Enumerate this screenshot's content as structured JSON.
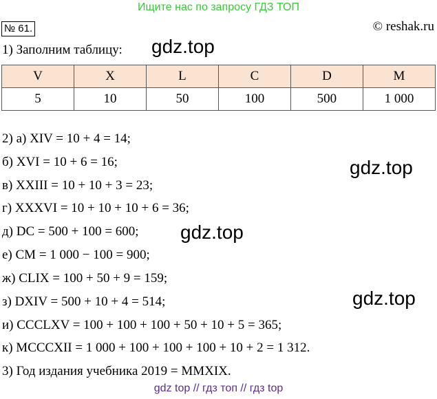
{
  "banner": "Ищите нас по запросу ГДЗ ТОП",
  "task_number": "№ 61.",
  "copyright": "© reshak.ru",
  "intro": "1) Заполним таблицу:",
  "watermarks": [
    "gdz.top",
    "gdz.top",
    "gdz.top",
    "gdz.top"
  ],
  "table": {
    "header": [
      "V",
      "X",
      "L",
      "C",
      "D",
      "M"
    ],
    "values": [
      "5",
      "10",
      "50",
      "100",
      "500",
      "1 000"
    ]
  },
  "lines": [
    "2) а) XIV = 10 + 4 = 14;",
    "б) XVI = 10 + 6 = 16;",
    "в) XXIII = 10 + 10 + 3 = 23;",
    "г) XXXVI = 10 + 10 + 10 + 6 = 36;",
    "д) DC = 500 + 100 = 600;",
    "е) CM = 1 000 − 100 = 900;",
    "ж) CLIX = 100 + 50 + 9 = 159;",
    "з) DXIV = 500 + 10 + 4 = 514;",
    "и) CCCLXV = 100 + 100 + 100 + 50 + 10 + 5 = 365;",
    "к) MCCCXII = 1 000 + 100 + 100 + 100 + 10 + 2 = 1 312.",
    "3) Год издания учебника 2019 = MMXIX."
  ],
  "bottom_links": "gdz top  //  гдз топ  //  гдз top"
}
